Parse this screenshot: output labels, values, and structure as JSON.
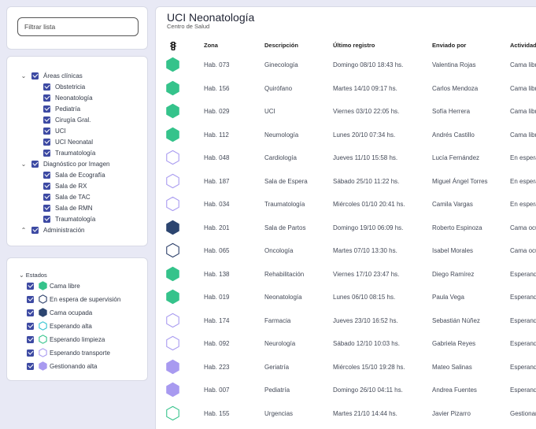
{
  "filter": {
    "placeholder": "Filtrar lista"
  },
  "tree": {
    "groups": [
      {
        "label": "Áreas clínicas",
        "expanded": true,
        "items": [
          "Obstetricia",
          "Neonatología",
          "Pediatría",
          "Cirugía Gral.",
          "UCI",
          "UCI Neonatal",
          "Traumatología"
        ]
      },
      {
        "label": "Diagnóstico por Imagen",
        "expanded": true,
        "items": [
          "Sala de Ecografía",
          "Sala de RX",
          "Sala de TAC",
          "Sala de RMN",
          "Traumatología"
        ]
      },
      {
        "label": "Administración",
        "expanded": false,
        "items": []
      }
    ]
  },
  "legend": {
    "title": "Estados",
    "items": [
      {
        "label": "Cama libre",
        "status": "libre"
      },
      {
        "label": "En espera de supervisión",
        "status": "espera"
      },
      {
        "label": "Cama ocupada",
        "status": "ocupada"
      },
      {
        "label": "Esperando alta",
        "status": "alta"
      },
      {
        "label": "Esperando limpieza",
        "status": "limpieza"
      },
      {
        "label": "Esperando transporte",
        "status": "transporte"
      },
      {
        "label": "Gestionando alta",
        "status": "gestionando"
      }
    ]
  },
  "status_styles": {
    "libre": {
      "fill": "#35c38b",
      "stroke": "#35c38b"
    },
    "espera": {
      "fill": "#ffffff",
      "stroke": "#2a3d68"
    },
    "ocupada": {
      "fill": "#2c4570",
      "stroke": "#2c4570"
    },
    "alta": {
      "fill": "#ffffff",
      "stroke": "#2fc3d1"
    },
    "limpieza": {
      "fill": "#ffffff",
      "stroke": "#35c38b"
    },
    "transporte": {
      "fill": "#ffffff",
      "stroke": "#a89af0"
    },
    "gestionando": {
      "fill": "#a89af0",
      "stroke": "#a89af0"
    }
  },
  "main": {
    "title": "UCI Neonatología",
    "subtitle": "Centro de Salud",
    "status_header_icon": "traffic-light-icon",
    "columns": [
      "Zona",
      "Descripción",
      "Último registro",
      "Enviado por",
      "Actividad"
    ],
    "rows": [
      {
        "status": "libre",
        "zona": "Hab. 073",
        "descripcion": "Ginecología",
        "registro": "Domingo 08/10 18:43 hs.",
        "enviado": "Valentina Rojas",
        "actividad": "Cama libre"
      },
      {
        "status": "libre",
        "zona": "Hab. 156",
        "descripcion": "Quirófano",
        "registro": "Martes 14/10 09:17 hs.",
        "enviado": "Carlos Mendoza",
        "actividad": "Cama libre"
      },
      {
        "status": "libre",
        "zona": "Hab. 029",
        "descripcion": "UCI",
        "registro": "Viernes 03/10 22:05 hs.",
        "enviado": "Sofía Herrera",
        "actividad": "Cama libre"
      },
      {
        "status": "libre",
        "zona": "Hab. 112",
        "descripcion": "Neumología",
        "registro": "Lunes 20/10 07:34 hs.",
        "enviado": "Andrés Castillo",
        "actividad": "Cama libre"
      },
      {
        "status": "transporte",
        "zona": "Hab. 048",
        "descripcion": "Cardiología",
        "registro": "Jueves 11/10 15:58 hs.",
        "enviado": "Lucía Fernández",
        "actividad": "En espera"
      },
      {
        "status": "transporte",
        "zona": "Hab. 187",
        "descripcion": "Sala de Espera",
        "registro": "Sábado 25/10 11:22 hs.",
        "enviado": "Miguel Ángel Torres",
        "actividad": "En espera"
      },
      {
        "status": "transporte",
        "zona": "Hab. 034",
        "descripcion": "Traumatología",
        "registro": "Miércoles 01/10 20:41 hs.",
        "enviado": "Camila Vargas",
        "actividad": "En espera"
      },
      {
        "status": "ocupada",
        "zona": "Hab. 201",
        "descripcion": "Sala de Partos",
        "registro": "Domingo 19/10 06:09 hs.",
        "enviado": "Roberto Espinoza",
        "actividad": "Cama ocupada"
      },
      {
        "status": "espera",
        "zona": "Hab. 065",
        "descripcion": "Oncología",
        "registro": "Martes 07/10 13:30 hs.",
        "enviado": "Isabel Morales",
        "actividad": "Cama ocupada"
      },
      {
        "status": "libre",
        "zona": "Hab. 138",
        "descripcion": "Rehabilitación",
        "registro": "Viernes 17/10 23:47 hs.",
        "enviado": "Diego Ramírez",
        "actividad": "Esperando"
      },
      {
        "status": "libre",
        "zona": "Hab. 019",
        "descripcion": "Neonatología",
        "registro": "Lunes 06/10 08:15 hs.",
        "enviado": "Paula Vega",
        "actividad": "Esperando"
      },
      {
        "status": "transporte",
        "zona": "Hab. 174",
        "descripcion": "Farmacia",
        "registro": "Jueves 23/10 16:52 hs.",
        "enviado": "Sebastián Núñez",
        "actividad": "Esperando"
      },
      {
        "status": "transporte",
        "zona": "Hab. 092",
        "descripcion": "Neurología",
        "registro": "Sábado 12/10 10:03 hs.",
        "enviado": "Gabriela Reyes",
        "actividad": "Esperando"
      },
      {
        "status": "gestionando",
        "zona": "Hab. 223",
        "descripcion": "Geriatría",
        "registro": "Miércoles 15/10 19:28 hs.",
        "enviado": "Mateo Salinas",
        "actividad": "Esperando"
      },
      {
        "status": "gestionando",
        "zona": "Hab. 007",
        "descripcion": "Pediatría",
        "registro": "Domingo 26/10 04:11 hs.",
        "enviado": "Andrea Fuentes",
        "actividad": "Esperando"
      },
      {
        "status": "limpieza",
        "zona": "Hab. 155",
        "descripcion": "Urgencias",
        "registro": "Martes 21/10 14:44 hs.",
        "enviado": "Javier Pizarro",
        "actividad": "Gestionando"
      }
    ]
  }
}
